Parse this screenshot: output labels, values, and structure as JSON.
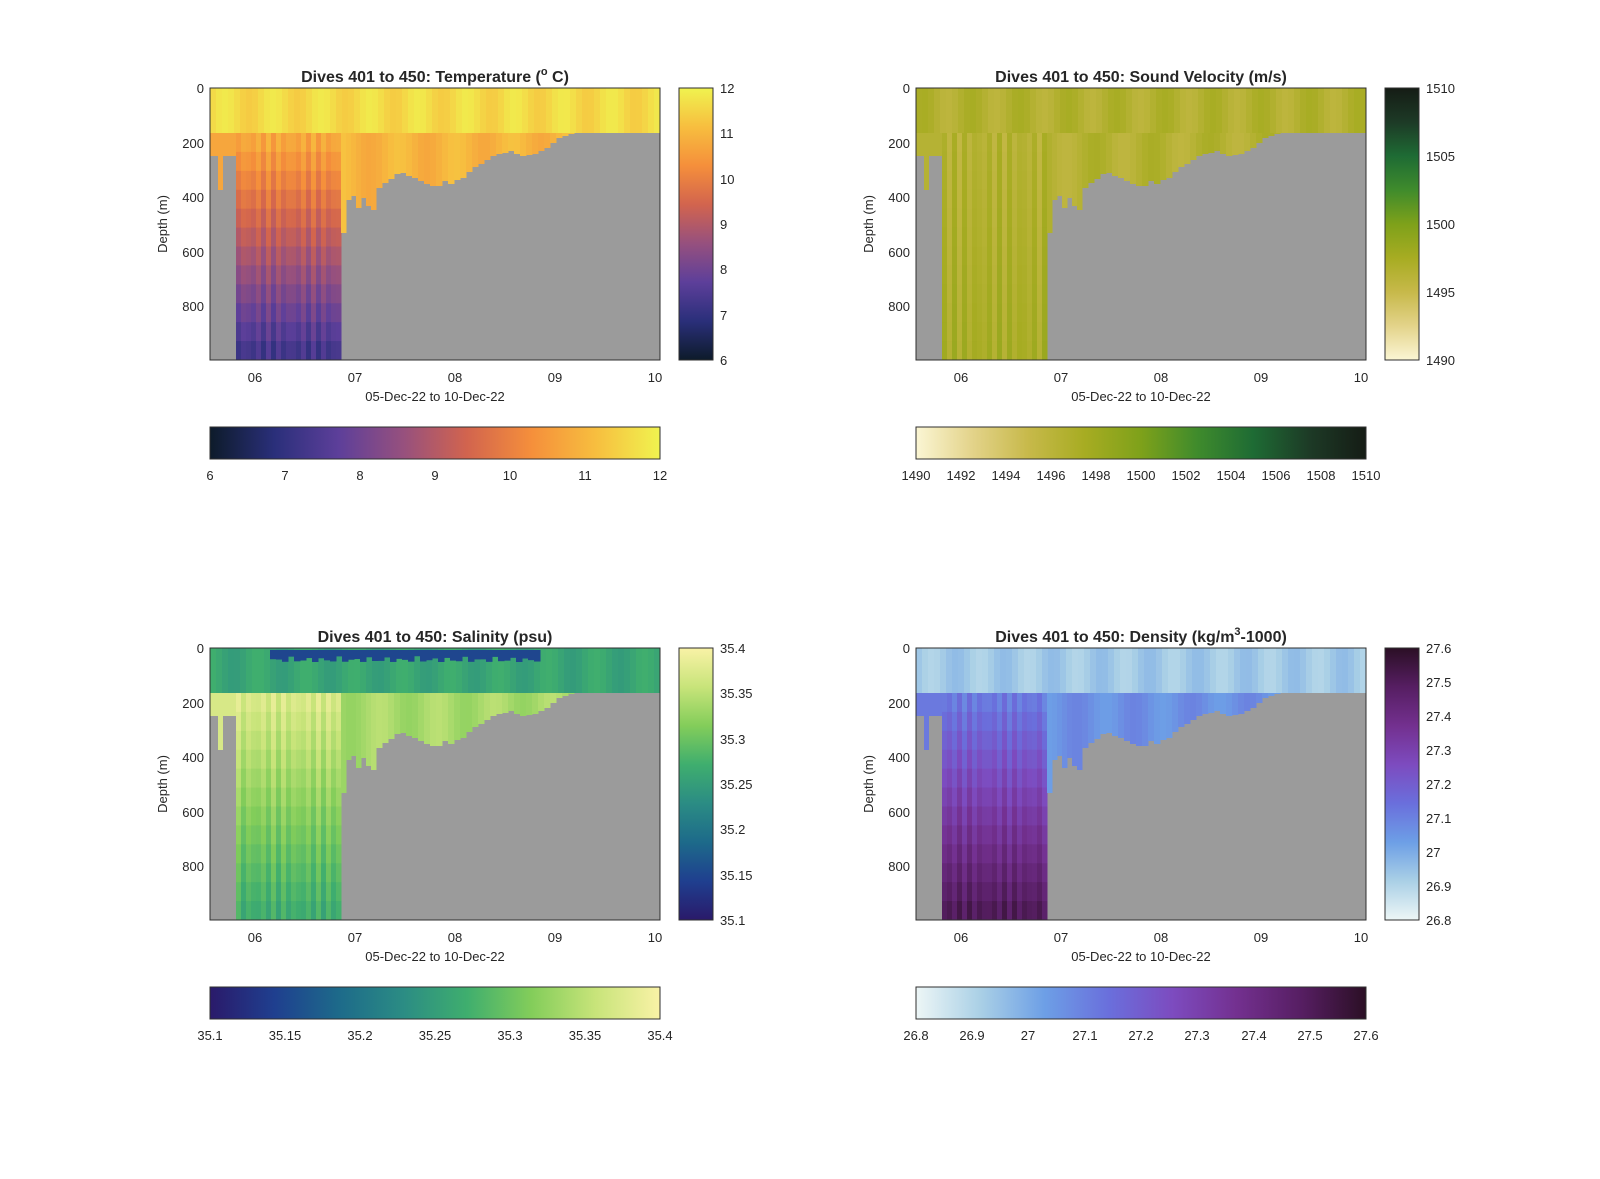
{
  "figure": {
    "ocean_fill": "#9b9b9b",
    "panel_border": "#2f2f2f"
  },
  "chart_data": [
    {
      "type": "heatmap",
      "id": "temperature",
      "title_text": "Dives 401 to 450: Temperature (",
      "title_sup": "o",
      "title_tail": " C)",
      "xlabel": "05-Dec-22 to 10-Dec-22",
      "ylabel": "Depth (m)",
      "x_domain": [
        "2022-12-05T13:00",
        "2022-12-10T01:00"
      ],
      "x_ticks": [
        "06",
        "07",
        "08",
        "09",
        "10"
      ],
      "ylim": [
        0,
        1000
      ],
      "y_ticks": [
        "0",
        "200",
        "400",
        "600",
        "800"
      ],
      "clim": [
        6,
        12
      ],
      "colormap": [
        "#0d1b2a",
        "#2a2f7a",
        "#5d3f9a",
        "#96507e",
        "#d2644e",
        "#f58f3b",
        "#f7be3f",
        "#f0f34f"
      ],
      "colorbar_right_ticks": [
        "6",
        "7",
        "8",
        "9",
        "10",
        "11",
        "12"
      ],
      "colorbar_bottom_ticks": [
        "6",
        "7",
        "8",
        "9",
        "10",
        "11",
        "12"
      ],
      "surface_value": 11.6,
      "deep_top_value": 10.7,
      "deep_bottom_value": 7.3,
      "fresh_layer": null,
      "grid": false,
      "legend": "colorbars right and bottom"
    },
    {
      "type": "heatmap",
      "id": "sound_velocity",
      "title_text": "Dives 401 to 450: Sound Velocity (m/s)",
      "title_sup": "",
      "title_tail": "",
      "xlabel": "05-Dec-22 to 10-Dec-22",
      "ylabel": "Depth (m)",
      "x_domain": [
        "2022-12-05T13:00",
        "2022-12-10T01:00"
      ],
      "x_ticks": [
        "06",
        "07",
        "08",
        "09",
        "10"
      ],
      "ylim": [
        0,
        1000
      ],
      "y_ticks": [
        "0",
        "200",
        "400",
        "600",
        "800"
      ],
      "clim": [
        1490,
        1510
      ],
      "colormap": [
        "#fbf6d4",
        "#e3d38a",
        "#c7b94a",
        "#a7ac22",
        "#7ea11a",
        "#3f8b2c",
        "#1e6b34",
        "#1d3a26",
        "#151c15"
      ],
      "colorbar_right_ticks": [
        "1490",
        "1495",
        "1500",
        "1505",
        "1510"
      ],
      "colorbar_bottom_ticks": [
        "1490",
        "1492",
        "1494",
        "1496",
        "1498",
        "1500",
        "1502",
        "1504",
        "1506",
        "1508",
        "1510"
      ],
      "surface_value": 1496.6,
      "deep_top_value": 1496.4,
      "deep_bottom_value": 1497.3,
      "fresh_layer": null,
      "grid": false,
      "legend": "colorbars right and bottom"
    },
    {
      "type": "heatmap",
      "id": "salinity",
      "title_text": "Dives 401 to 450: Salinity (psu)",
      "title_sup": "",
      "title_tail": "",
      "xlabel": "05-Dec-22 to 10-Dec-22",
      "ylabel": "Depth (m)",
      "x_domain": [
        "2022-12-05T13:00",
        "2022-12-10T01:00"
      ],
      "x_ticks": [
        "06",
        "07",
        "08",
        "09",
        "10"
      ],
      "ylim": [
        0,
        1000
      ],
      "y_ticks": [
        "0",
        "200",
        "400",
        "600",
        "800"
      ],
      "clim": [
        35.1,
        35.4
      ],
      "colormap": [
        "#2a1a6a",
        "#1f3f8f",
        "#1d6a8a",
        "#2b8c84",
        "#3fae6e",
        "#83cd5a",
        "#c8e47a",
        "#f9f2a6"
      ],
      "colorbar_right_ticks": [
        "35.1",
        "35.15",
        "35.2",
        "35.25",
        "35.3",
        "35.35",
        "35.4"
      ],
      "colorbar_bottom_ticks": [
        "35.1",
        "35.15",
        "35.2",
        "35.25",
        "35.3",
        "35.35",
        "35.4"
      ],
      "surface_value": 35.26,
      "deep_top_value": 35.37,
      "deep_bottom_value": 35.27,
      "fresh_layer": 35.15,
      "grid": false,
      "legend": "colorbars right and bottom"
    },
    {
      "type": "heatmap",
      "id": "density",
      "title_text": "Dives 401 to 450: Density (kg/m",
      "title_sup": "3",
      "title_tail": "-1000)",
      "xlabel": "05-Dec-22 to 10-Dec-22",
      "ylabel": "Depth (m)",
      "x_domain": [
        "2022-12-05T13:00",
        "2022-12-10T01:00"
      ],
      "x_ticks": [
        "06",
        "07",
        "08",
        "09",
        "10"
      ],
      "ylim": [
        0,
        1000
      ],
      "y_ticks": [
        "0",
        "200",
        "400",
        "600",
        "800"
      ],
      "clim": [
        26.8,
        27.6
      ],
      "colormap": [
        "#edf6f6",
        "#aad0e6",
        "#6d9fe6",
        "#6a6fdc",
        "#7d4bbf",
        "#73308f",
        "#561e62",
        "#2b0f25"
      ],
      "colorbar_right_ticks": [
        "27.6",
        "27.5",
        "27.4",
        "27.3",
        "27.2",
        "27.1",
        "27",
        "26.9",
        "26.8"
      ],
      "colorbar_bottom_ticks": [
        "26.8",
        "26.9",
        "27",
        "27.1",
        "27.2",
        "27.3",
        "27.4",
        "27.5",
        "27.6"
      ],
      "surface_value": 26.93,
      "deep_top_value": 27.12,
      "deep_bottom_value": 27.5,
      "fresh_layer": null,
      "grid": false,
      "legend": "colorbars right and bottom"
    }
  ]
}
